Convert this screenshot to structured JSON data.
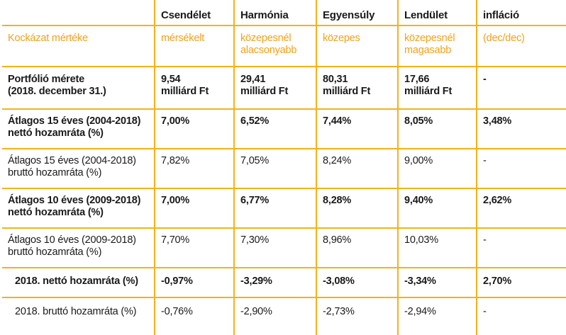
{
  "columns": [
    "",
    "Csendélet",
    "Harmónia",
    "Egyensúly",
    "Lendület",
    "infláció"
  ],
  "risk_row": {
    "label": "Kockázat mértéke",
    "values": [
      [
        "mérsékelt"
      ],
      [
        "közepesnél",
        "alacsonyabb"
      ],
      [
        "közepes"
      ],
      [
        "közepesnél",
        "magasabb"
      ],
      [
        "(dec/dec)"
      ]
    ]
  },
  "portfolio_row": {
    "label": [
      "Portfólió mérete",
      "(2018. december 31.)"
    ],
    "values": [
      [
        "9,54",
        "milliárd Ft"
      ],
      [
        "29,41",
        "milliárd Ft"
      ],
      [
        "80,31",
        "milliárd Ft"
      ],
      [
        "17,66",
        "milliárd Ft"
      ],
      [
        "-"
      ]
    ]
  },
  "rows": [
    {
      "label": [
        "Átlagos 15 éves (2004-2018)",
        "nettó hozamráta (%)"
      ],
      "bold": true,
      "values": [
        "7,00%",
        "6,52%",
        "7,44%",
        "8,05%",
        "3,48%"
      ]
    },
    {
      "label": [
        "Átlagos 15 éves (2004-2018)",
        "bruttó hozamráta (%)"
      ],
      "bold": false,
      "values": [
        "7,82%",
        "7,05%",
        "8,24%",
        "9,00%",
        "-"
      ]
    },
    {
      "label": [
        "Átlagos 10 éves (2009-2018)",
        "nettó hozamráta (%)"
      ],
      "bold": true,
      "values": [
        "7,00%",
        "6,77%",
        "8,28%",
        "9,40%",
        "2,62%"
      ]
    },
    {
      "label": [
        "Átlagos 10 éves (2009-2018)",
        "bruttó hozamráta (%)"
      ],
      "bold": false,
      "values": [
        "7,70%",
        "7,30%",
        "8,96%",
        "10,03%",
        "-"
      ]
    },
    {
      "label": [
        "2018. nettó hozamráta (%)"
      ],
      "bold": true,
      "values": [
        "-0,97%",
        "-3,29%",
        "-3,08%",
        "-3,34%",
        "2,70%"
      ]
    },
    {
      "label": [
        "2018. bruttó hozamráta (%)"
      ],
      "bold": false,
      "values": [
        "-0,76%",
        "-2,90%",
        "-2,73%",
        "-2,94%",
        "-"
      ]
    }
  ],
  "colors": {
    "rule": "#f3b21b",
    "accent_text": "#f0a21b",
    "text": "#1a1a1a"
  }
}
